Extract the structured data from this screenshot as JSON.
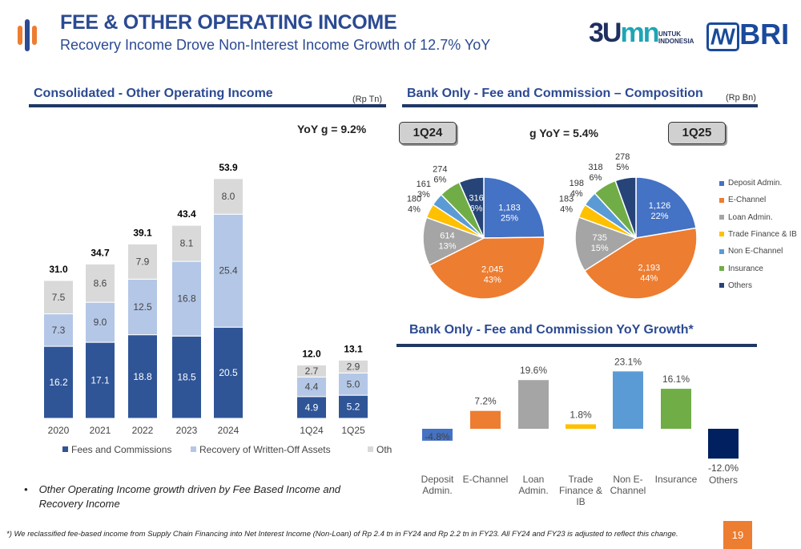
{
  "header": {
    "title": "FEE & OTHER OPERATING INCOME",
    "subtitle": "Recovery Income Drove Non-Interest Income Growth of 12.7% YoY",
    "logo_bumn": "BUMN UNTUK INDONESIA",
    "logo_bri": "BRI"
  },
  "colors": {
    "brand": "#2b4a92",
    "accent": "#ed7d31",
    "navy": "#1f3864"
  },
  "chart_data": [
    {
      "type": "bar",
      "stacked": true,
      "title": "Consolidated - Other Operating Income",
      "unit": "(Rp Tn)",
      "annotation": "YoY g = 9.2%",
      "categories": [
        "2020",
        "2021",
        "2022",
        "2023",
        "2024",
        "1Q24",
        "1Q25"
      ],
      "series": [
        {
          "name": "Fees and Commissions",
          "color": "#2f5597",
          "values": [
            16.2,
            17.1,
            18.8,
            18.5,
            20.5,
            4.9,
            5.2
          ]
        },
        {
          "name": "Recovery of Written-Off Assets",
          "color": "#b4c7e7",
          "values": [
            7.3,
            9.0,
            12.5,
            16.8,
            25.4,
            4.4,
            5.0
          ]
        },
        {
          "name": "Others",
          "color": "#d9d9d9",
          "values": [
            7.5,
            8.6,
            7.9,
            8.1,
            8.0,
            2.7,
            2.9
          ]
        }
      ],
      "totals": [
        "31.0",
        "34.7",
        "39.1",
        "43.4",
        "53.9",
        "12.0",
        "13.1"
      ],
      "legend": "bottom"
    },
    {
      "type": "pie",
      "title": "Bank Only - Fee and Commission – Composition",
      "unit": "(Rp Bn)",
      "annotation": "g YoY = 5.4%",
      "categories": [
        "Deposit Admin.",
        "E-Channel",
        "Loan Admin.",
        "Trade Finance & IB",
        "Non E-Channel",
        "Insurance",
        "Others"
      ],
      "colors": [
        "#4472c4",
        "#ed7d31",
        "#a5a5a5",
        "#ffc000",
        "#5b9bd5",
        "#70ad47",
        "#264478"
      ],
      "pies": [
        {
          "name": "1Q24",
          "values": [
            1183,
            2045,
            614,
            180,
            161,
            274,
            316
          ],
          "labels": [
            "1,183",
            "2,045",
            "614",
            "180",
            "161",
            "274",
            "316"
          ],
          "pct": [
            "25%",
            "43%",
            "13%",
            "4%",
            "3%",
            "6%",
            "6%"
          ]
        },
        {
          "name": "1Q25",
          "values": [
            1126,
            2193,
            735,
            183,
            198,
            318,
            278
          ],
          "labels": [
            "1,126",
            "2,193",
            "735",
            "183",
            "198",
            "318",
            "278"
          ],
          "pct": [
            "22%",
            "44%",
            "15%",
            "4%",
            "4%",
            "6%",
            "5%"
          ]
        }
      ],
      "legend": "right"
    },
    {
      "type": "bar",
      "title": "Bank Only - Fee and Commission YoY Growth*",
      "categories": [
        "Deposit Admin.",
        "E-Channel",
        "Loan Admin.",
        "Trade Finance & IB",
        "Non E-Channel",
        "Insurance",
        "Others"
      ],
      "values": [
        -4.8,
        7.2,
        19.6,
        1.8,
        23.1,
        16.1,
        -12.0
      ],
      "labels": [
        "-4.8%",
        "7.2%",
        "19.6%",
        "1.8%",
        "23.1%",
        "16.1%",
        "-12.0%"
      ],
      "colors": [
        "#4472c4",
        "#ed7d31",
        "#a5a5a5",
        "#ffc000",
        "#5b9bd5",
        "#70ad47",
        "#002060"
      ]
    }
  ],
  "notes": {
    "bullet": "Other Operating Income growth driven by Fee Based Income and Recovery Income",
    "footnote": "*) We reclassified fee-based income from Supply Chain Financing into Net Interest Income (Non-Loan) of Rp 2.4 tn in FY24 and Rp 2.2 tn in FY23. All FY24 and FY23 is adjusted to reflect this change.",
    "page": "19"
  }
}
